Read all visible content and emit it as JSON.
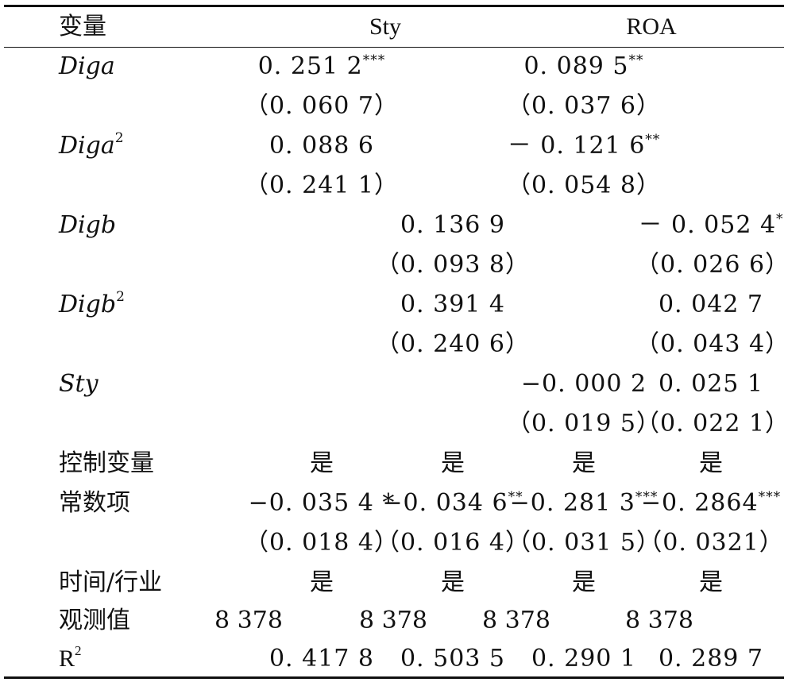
{
  "header": {
    "variable": "变量",
    "group_sty": "Sty",
    "group_roa": "ROA"
  },
  "rows": {
    "diga": {
      "label": "Diga",
      "c1": "0. 251 2",
      "c1_sup": "***",
      "c3": "0. 089 5",
      "c3_sup": "**",
      "c1_se": "（0. 060 7）",
      "c3_se": "（0. 037 6）"
    },
    "diga2": {
      "label": "Diga",
      "label_sup": "2",
      "c1": "0. 088 6",
      "c3": "－ 0. 121 6",
      "c3_sup": "**",
      "c1_se": "（0. 241 1）",
      "c3_se": "（0. 054 8）"
    },
    "digb": {
      "label": "Digb",
      "c2": "0. 136 9",
      "c4": "－ 0. 052 4",
      "c4_sup": "*",
      "c2_se": "（0. 093 8）",
      "c4_se": "（0. 026 6）"
    },
    "digb2": {
      "label": "Digb",
      "label_sup": "2",
      "c2": "0. 391 4",
      "c4": "0. 042 7",
      "c2_se": "（0. 240 6）",
      "c4_se": "（0. 043 4）"
    },
    "sty": {
      "label": "Sty",
      "c3": "−0. 000 2",
      "c4": "0. 025 1",
      "c3_se": "（0. 019 5）",
      "c4_se": "（0. 022 1）"
    },
    "controls": {
      "label": "控制变量",
      "c1": "是",
      "c2": "是",
      "c3": "是",
      "c4": "是"
    },
    "constant": {
      "label": "常数项",
      "c1": "−0. 035 4 *",
      "c2": "−0. 034 6",
      "c2_sup": "**",
      "c3": "−0. 281 3",
      "c3_sup": "***",
      "c4": "−0. 2864",
      "c4_sup": "***",
      "c1_se": "（0. 018 4）",
      "c2_se": "（0. 016 4）",
      "c3_se": "（0. 031 5）",
      "c4_se": "（0. 0321）"
    },
    "time_industry": {
      "label": "时间/行业",
      "c1": "是",
      "c2": "是",
      "c3": "是",
      "c4": "是"
    },
    "observations": {
      "label": "观测值",
      "c1": "8 378",
      "c2": "8 378",
      "c3": "8 378",
      "c4": "8 378"
    },
    "r2": {
      "label": "R",
      "label_sup": "2",
      "c1": "0. 417 8",
      "c2": "0. 503 5",
      "c3": "0. 290 1",
      "c4": "0. 289 7"
    }
  }
}
